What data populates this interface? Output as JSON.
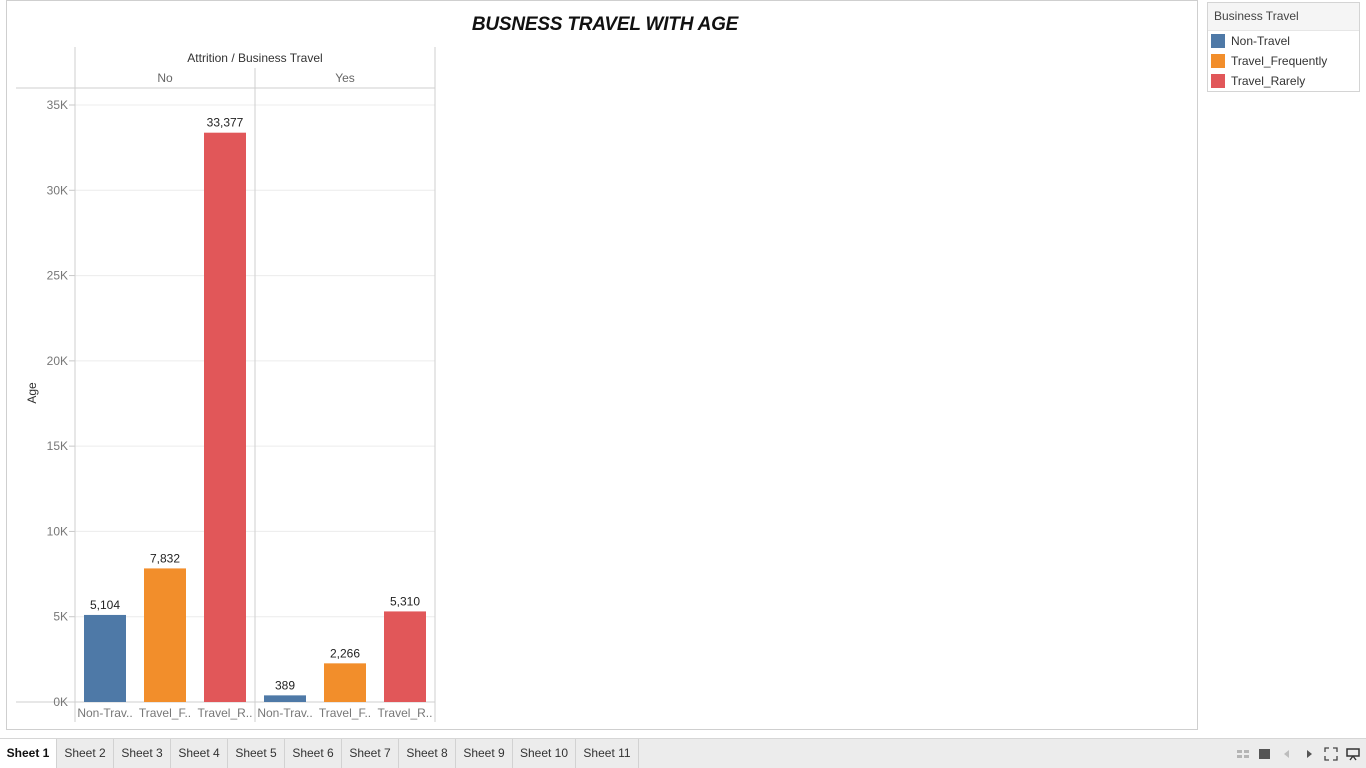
{
  "chart_data": {
    "type": "bar",
    "title": "BUSNESS TRAVEL WITH AGE",
    "column_header": "Attrition / Business Travel",
    "ylabel": "Age",
    "ylim": [
      0,
      35000
    ],
    "yticks": [
      0,
      5000,
      10000,
      15000,
      20000,
      25000,
      30000,
      35000
    ],
    "ytick_labels": [
      "0K",
      "5K",
      "10K",
      "15K",
      "20K",
      "25K",
      "30K",
      "35K"
    ],
    "panes": [
      {
        "label": "No",
        "bars": [
          {
            "category": "Non-Trav..",
            "series": "Non-Travel",
            "value": 5104,
            "label": "5,104"
          },
          {
            "category": "Travel_F..",
            "series": "Travel_Frequently",
            "value": 7832,
            "label": "7,832"
          },
          {
            "category": "Travel_R..",
            "series": "Travel_Rarely",
            "value": 33377,
            "label": "33,377"
          }
        ]
      },
      {
        "label": "Yes",
        "bars": [
          {
            "category": "Non-Trav..",
            "series": "Non-Travel",
            "value": 389,
            "label": "389"
          },
          {
            "category": "Travel_F..",
            "series": "Travel_Frequently",
            "value": 2266,
            "label": "2,266"
          },
          {
            "category": "Travel_R..",
            "series": "Travel_Rarely",
            "value": 5310,
            "label": "5,310"
          }
        ]
      }
    ],
    "colors": {
      "Non-Travel": "#4e79a7",
      "Travel_Frequently": "#f28e2b",
      "Travel_Rarely": "#e15759"
    },
    "grid": true,
    "legend_position": "right"
  },
  "legend": {
    "title": "Business Travel",
    "items": [
      {
        "label": "Non-Travel",
        "color": "#4e79a7"
      },
      {
        "label": "Travel_Frequently",
        "color": "#f28e2b"
      },
      {
        "label": "Travel_Rarely",
        "color": "#e15759"
      }
    ]
  },
  "sheets": {
    "active": "Sheet 1",
    "tabs": [
      "Sheet 1",
      "Sheet 2",
      "Sheet 3",
      "Sheet 4",
      "Sheet 5",
      "Sheet 6",
      "Sheet 7",
      "Sheet 8",
      "Sheet 9",
      "Sheet 10",
      "Sheet 11"
    ]
  },
  "controls": [
    "grid-view-icon",
    "single-view-icon",
    "prev-sheet-icon",
    "next-sheet-icon",
    "fit-screen-icon",
    "presentation-mode-icon"
  ]
}
